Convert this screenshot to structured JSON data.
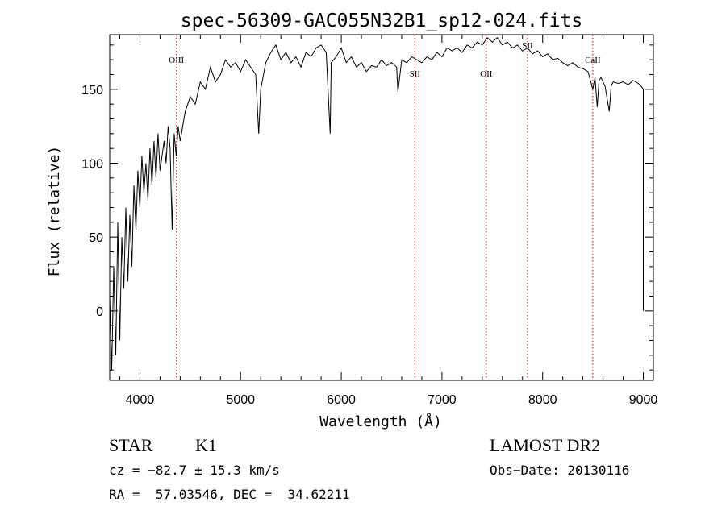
{
  "chart_data": {
    "type": "line",
    "title": "spec-56309-GAC055N32B1_sp12-024.fits",
    "xlabel": "Wavelength (Å)",
    "ylabel": "Flux (relative)",
    "xlim": [
      3700,
      9100
    ],
    "ylim": [
      -47,
      187
    ],
    "xticks": [
      4000,
      5000,
      6000,
      7000,
      8000,
      9000
    ],
    "yticks": [
      0,
      50,
      100,
      150
    ],
    "grid": false,
    "series": [
      {
        "points": [
          [
            3700,
            10
          ],
          [
            3720,
            -40
          ],
          [
            3740,
            30
          ],
          [
            3760,
            -30
          ],
          [
            3780,
            60
          ],
          [
            3800,
            -20
          ],
          [
            3820,
            50
          ],
          [
            3840,
            15
          ],
          [
            3860,
            70
          ],
          [
            3880,
            20
          ],
          [
            3900,
            65
          ],
          [
            3920,
            30
          ],
          [
            3940,
            85
          ],
          [
            3960,
            55
          ],
          [
            3980,
            95
          ],
          [
            4000,
            70
          ],
          [
            4020,
            105
          ],
          [
            4040,
            80
          ],
          [
            4060,
            100
          ],
          [
            4080,
            75
          ],
          [
            4100,
            110
          ],
          [
            4120,
            85
          ],
          [
            4140,
            115
          ],
          [
            4160,
            90
          ],
          [
            4180,
            120
          ],
          [
            4200,
            95
          ],
          [
            4220,
            105
          ],
          [
            4240,
            115
          ],
          [
            4260,
            100
          ],
          [
            4280,
            125
          ],
          [
            4300,
            110
          ],
          [
            4320,
            55
          ],
          [
            4340,
            120
          ],
          [
            4360,
            105
          ],
          [
            4380,
            125
          ],
          [
            4400,
            115
          ],
          [
            4450,
            135
          ],
          [
            4500,
            145
          ],
          [
            4550,
            140
          ],
          [
            4600,
            155
          ],
          [
            4650,
            150
          ],
          [
            4700,
            165
          ],
          [
            4750,
            155
          ],
          [
            4800,
            160
          ],
          [
            4850,
            170
          ],
          [
            4900,
            165
          ],
          [
            4950,
            168
          ],
          [
            5000,
            162
          ],
          [
            5050,
            170
          ],
          [
            5100,
            165
          ],
          [
            5150,
            160
          ],
          [
            5180,
            120
          ],
          [
            5200,
            150
          ],
          [
            5250,
            168
          ],
          [
            5300,
            175
          ],
          [
            5350,
            180
          ],
          [
            5400,
            170
          ],
          [
            5450,
            175
          ],
          [
            5500,
            168
          ],
          [
            5550,
            172
          ],
          [
            5600,
            165
          ],
          [
            5650,
            175
          ],
          [
            5700,
            172
          ],
          [
            5750,
            178
          ],
          [
            5800,
            180
          ],
          [
            5850,
            175
          ],
          [
            5890,
            120
          ],
          [
            5900,
            168
          ],
          [
            5950,
            172
          ],
          [
            6000,
            178
          ],
          [
            6050,
            168
          ],
          [
            6100,
            172
          ],
          [
            6150,
            165
          ],
          [
            6200,
            168
          ],
          [
            6250,
            162
          ],
          [
            6300,
            166
          ],
          [
            6350,
            165
          ],
          [
            6400,
            170
          ],
          [
            6450,
            166
          ],
          [
            6500,
            168
          ],
          [
            6550,
            165
          ],
          [
            6563,
            148
          ],
          [
            6600,
            170
          ],
          [
            6650,
            168
          ],
          [
            6700,
            172
          ],
          [
            6750,
            170
          ],
          [
            6800,
            168
          ],
          [
            6850,
            172
          ],
          [
            6900,
            170
          ],
          [
            6950,
            175
          ],
          [
            7000,
            172
          ],
          [
            7050,
            178
          ],
          [
            7100,
            176
          ],
          [
            7150,
            178
          ],
          [
            7200,
            175
          ],
          [
            7250,
            180
          ],
          [
            7300,
            178
          ],
          [
            7350,
            182
          ],
          [
            7400,
            180
          ],
          [
            7450,
            185
          ],
          [
            7500,
            182
          ],
          [
            7550,
            185
          ],
          [
            7600,
            180
          ],
          [
            7650,
            182
          ],
          [
            7700,
            178
          ],
          [
            7750,
            180
          ],
          [
            7800,
            176
          ],
          [
            7850,
            178
          ],
          [
            7900,
            174
          ],
          [
            7950,
            176
          ],
          [
            8000,
            172
          ],
          [
            8050,
            174
          ],
          [
            8100,
            170
          ],
          [
            8150,
            171
          ],
          [
            8200,
            168
          ],
          [
            8250,
            166
          ],
          [
            8300,
            168
          ],
          [
            8350,
            165
          ],
          [
            8400,
            164
          ],
          [
            8450,
            162
          ],
          [
            8498,
            150
          ],
          [
            8520,
            158
          ],
          [
            8542,
            138
          ],
          [
            8560,
            156
          ],
          [
            8580,
            158
          ],
          [
            8600,
            155
          ],
          [
            8620,
            152
          ],
          [
            8662,
            135
          ],
          [
            8680,
            152
          ],
          [
            8700,
            155
          ],
          [
            8750,
            154
          ],
          [
            8800,
            155
          ],
          [
            8850,
            153
          ],
          [
            8900,
            156
          ],
          [
            8950,
            154
          ],
          [
            8980,
            152
          ],
          [
            9000,
            150
          ],
          [
            9000,
            0
          ]
        ]
      }
    ],
    "lines": [
      {
        "x": 4363,
        "label": "OIII"
      },
      {
        "x": 6731,
        "label": "SII"
      },
      {
        "x": 7440,
        "label": "OII"
      },
      {
        "x": 7850,
        "label": "SII"
      },
      {
        "x": 8498,
        "label": "CaII"
      }
    ]
  },
  "info": {
    "object_class": "STAR",
    "subclass": "K1",
    "survey": "LAMOST DR2",
    "cz": "cz = −82.7 ± 15.3 km/s",
    "obs_date": "Obs−Date: 20130116",
    "coords": "RA =  57.03546, DEC =  34.62211"
  },
  "colors": {
    "line": "#000000",
    "marker_line": "#990000"
  }
}
